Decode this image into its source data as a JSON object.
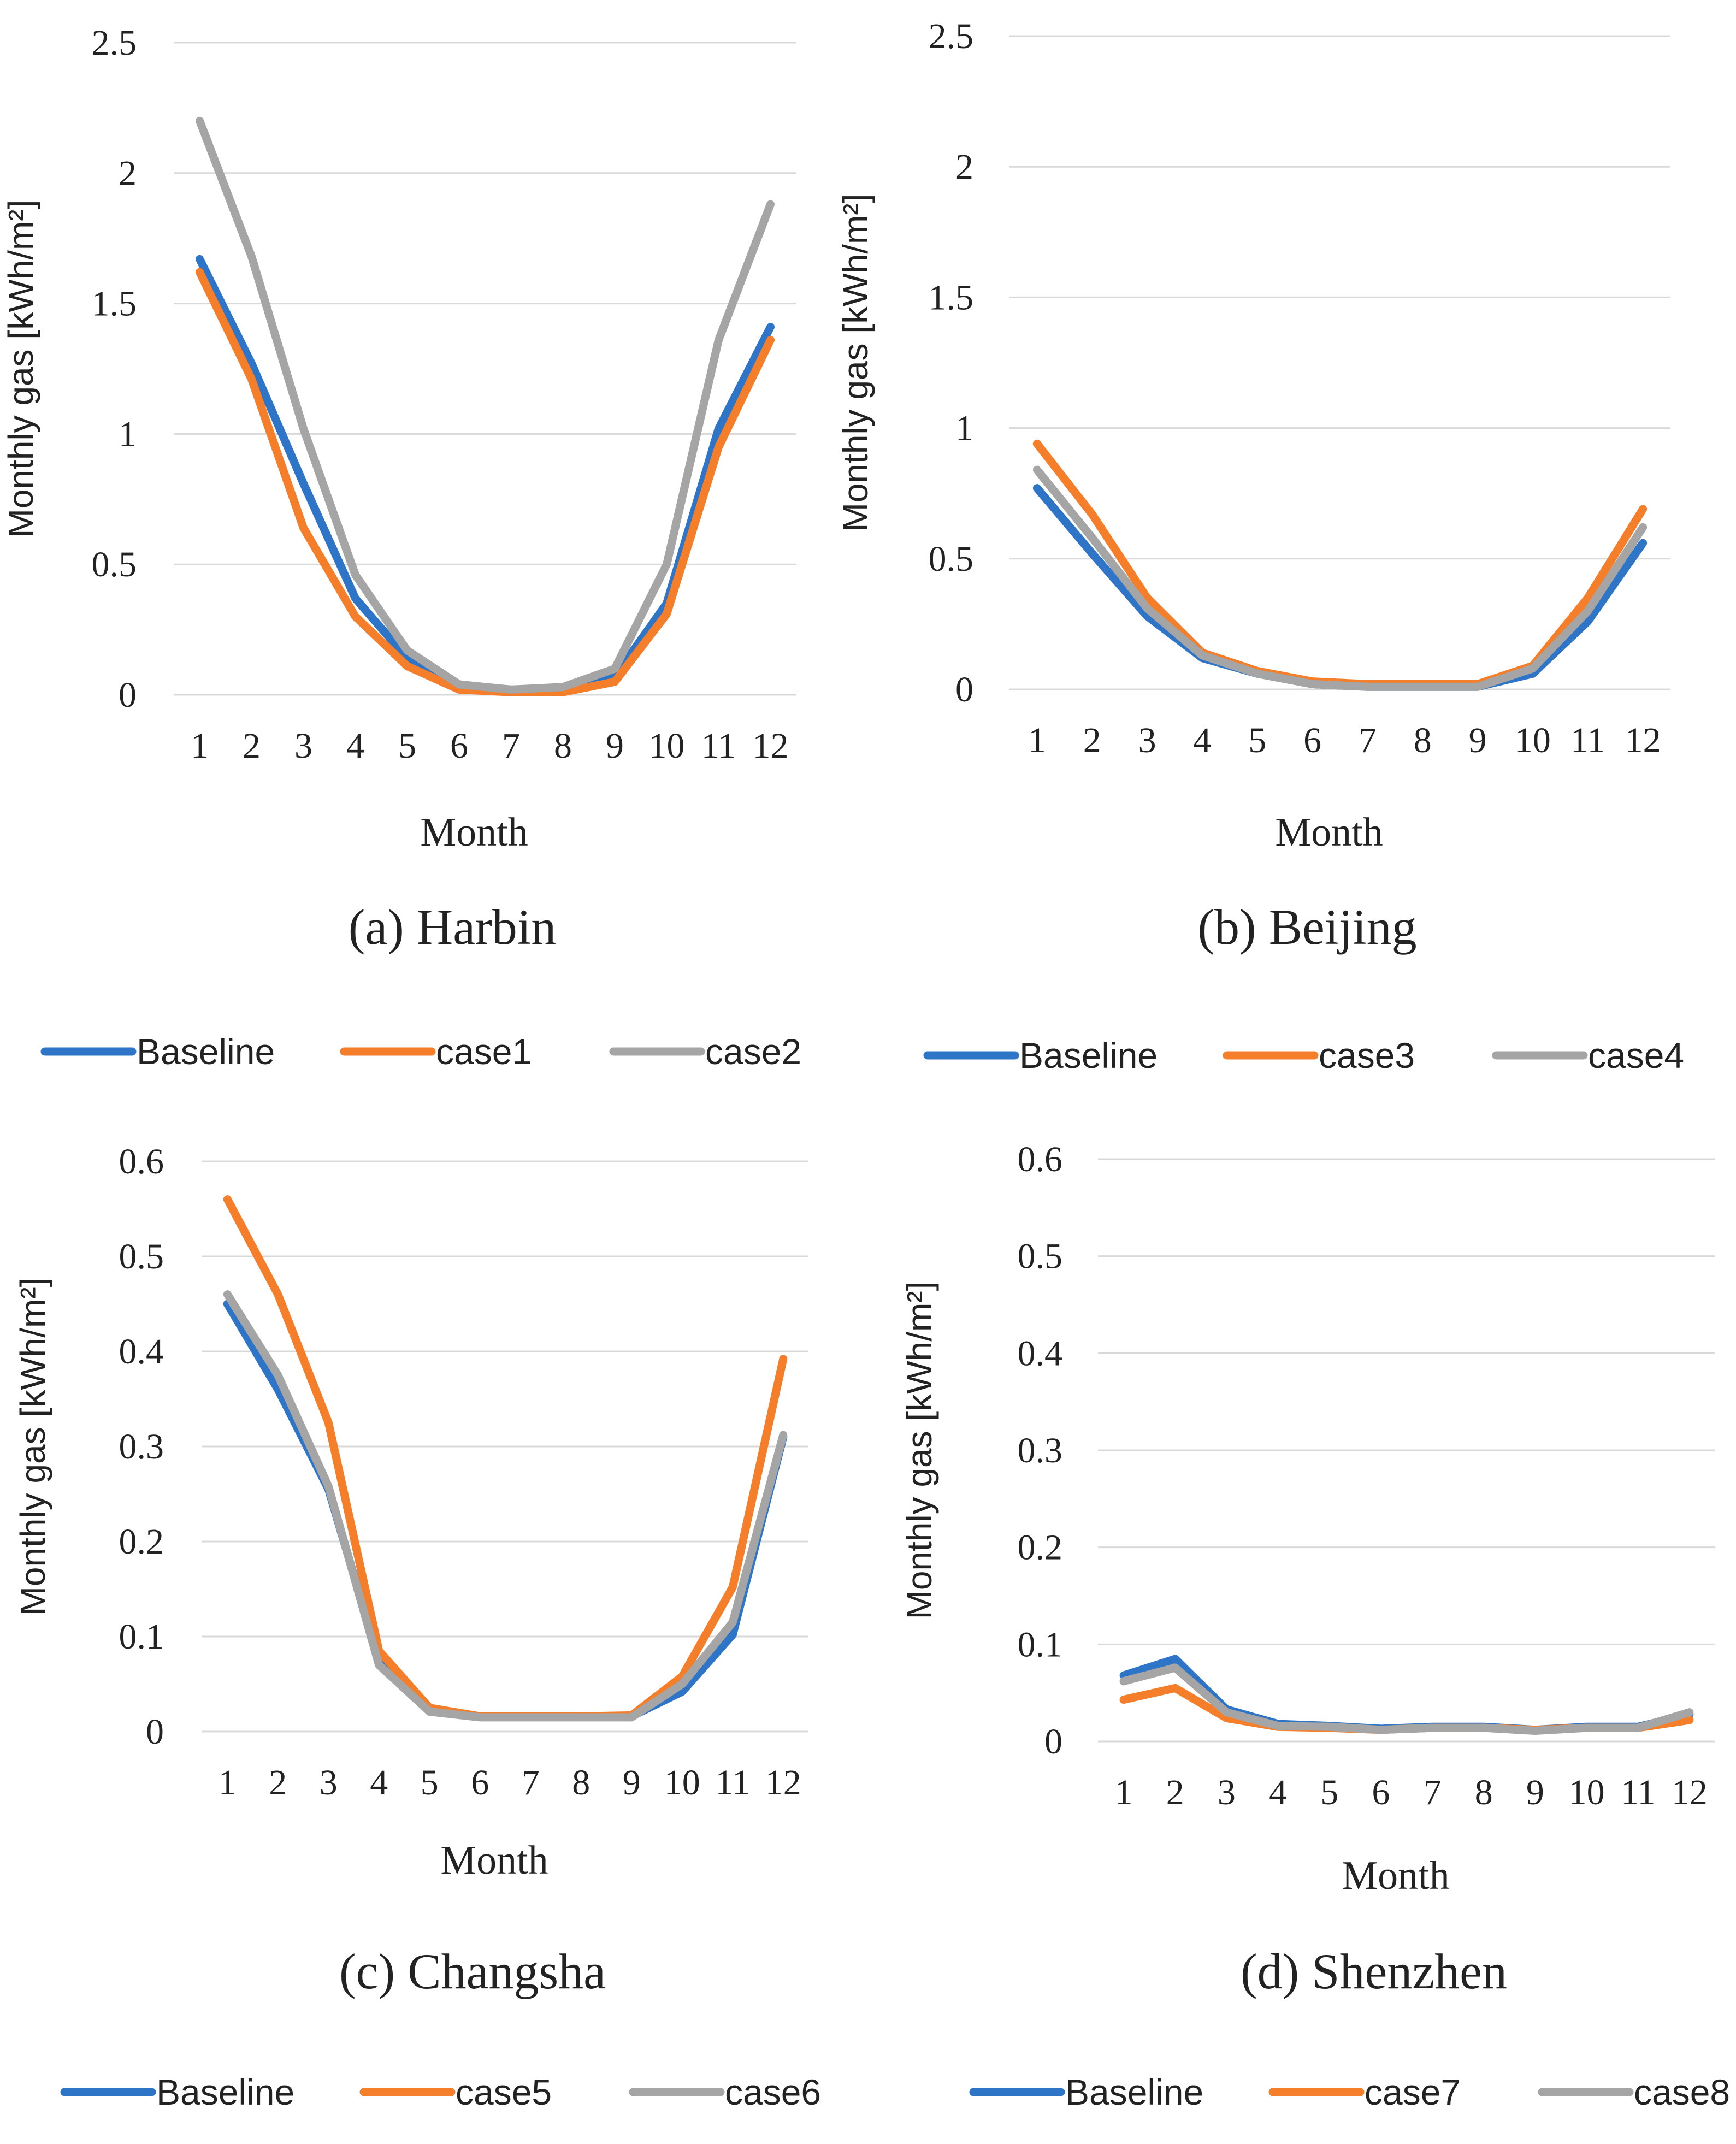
{
  "colors": {
    "baseline": "#2e75c8",
    "case_odd": "#f47e2a",
    "case_even": "#a5a5a5"
  },
  "chart_data": [
    {
      "type": "line",
      "caption": "(a) Harbin",
      "xlabel": "Month",
      "ylabel": "Monthly gas [kWh/m²]",
      "categories": [
        "1",
        "2",
        "3",
        "4",
        "5",
        "6",
        "7",
        "8",
        "9",
        "10",
        "11",
        "12"
      ],
      "ylim": [
        0,
        2.5
      ],
      "yticks": [
        "0",
        "0.5",
        "1",
        "1.5",
        "2",
        "2.5"
      ],
      "grid": true,
      "legend_position": "bottom",
      "series": [
        {
          "name": "Baseline",
          "values": [
            1.67,
            1.27,
            0.81,
            0.37,
            0.14,
            0.03,
            0.02,
            0.02,
            0.07,
            0.35,
            1.02,
            1.41
          ]
        },
        {
          "name": "case1",
          "values": [
            1.62,
            1.21,
            0.64,
            0.3,
            0.11,
            0.02,
            0.01,
            0.01,
            0.05,
            0.31,
            0.95,
            1.36
          ]
        },
        {
          "name": "case2",
          "values": [
            2.2,
            1.68,
            1.02,
            0.46,
            0.17,
            0.04,
            0.02,
            0.03,
            0.1,
            0.5,
            1.36,
            1.88
          ]
        }
      ]
    },
    {
      "type": "line",
      "caption": "(b) Beijing",
      "xlabel": "Month",
      "ylabel": "Monthly gas [kWh/m²]",
      "categories": [
        "1",
        "2",
        "3",
        "4",
        "5",
        "6",
        "7",
        "8",
        "9",
        "10",
        "11",
        "12"
      ],
      "ylim": [
        0,
        2.5
      ],
      "yticks": [
        "0",
        "0.5",
        "1",
        "1.5",
        "2",
        "2.5"
      ],
      "grid": true,
      "legend_position": "bottom",
      "series": [
        {
          "name": "Baseline",
          "values": [
            0.77,
            0.52,
            0.28,
            0.12,
            0.06,
            0.02,
            0.01,
            0.01,
            0.01,
            0.06,
            0.26,
            0.56
          ]
        },
        {
          "name": "case3",
          "values": [
            0.94,
            0.67,
            0.35,
            0.14,
            0.07,
            0.03,
            0.02,
            0.02,
            0.02,
            0.09,
            0.35,
            0.69
          ]
        },
        {
          "name": "case4",
          "values": [
            0.84,
            0.58,
            0.31,
            0.13,
            0.06,
            0.02,
            0.01,
            0.01,
            0.01,
            0.08,
            0.3,
            0.62
          ]
        }
      ]
    },
    {
      "type": "line",
      "caption": "(c) Changsha",
      "xlabel": "Month",
      "ylabel": "Monthly gas [kWh/m²]",
      "categories": [
        "1",
        "2",
        "3",
        "4",
        "5",
        "6",
        "7",
        "8",
        "9",
        "10",
        "11",
        "12"
      ],
      "ylim": [
        0,
        0.6
      ],
      "yticks": [
        "0",
        "0.1",
        "0.2",
        "0.3",
        "0.4",
        "0.5",
        "0.6"
      ],
      "grid": true,
      "legend_position": "bottom",
      "series": [
        {
          "name": "Baseline",
          "values": [
            0.45,
            0.36,
            0.255,
            0.075,
            0.022,
            0.016,
            0.016,
            0.016,
            0.016,
            0.042,
            0.102,
            0.31
          ]
        },
        {
          "name": "case5",
          "values": [
            0.56,
            0.46,
            0.325,
            0.085,
            0.025,
            0.016,
            0.016,
            0.016,
            0.017,
            0.058,
            0.152,
            0.392
          ]
        },
        {
          "name": "case6",
          "values": [
            0.46,
            0.375,
            0.258,
            0.07,
            0.021,
            0.015,
            0.015,
            0.015,
            0.015,
            0.05,
            0.115,
            0.312
          ]
        }
      ]
    },
    {
      "type": "line",
      "caption": "(d) Shenzhen",
      "xlabel": "Month",
      "ylabel": "Monthly gas [kWh/m²]",
      "categories": [
        "1",
        "2",
        "3",
        "4",
        "5",
        "6",
        "7",
        "8",
        "9",
        "10",
        "11",
        "12"
      ],
      "ylim": [
        0,
        0.6
      ],
      "yticks": [
        "0",
        "0.1",
        "0.2",
        "0.3",
        "0.4",
        "0.5",
        "0.6"
      ],
      "grid": true,
      "legend_position": "bottom",
      "series": [
        {
          "name": "Baseline",
          "values": [
            0.068,
            0.085,
            0.033,
            0.018,
            0.016,
            0.013,
            0.015,
            0.015,
            0.012,
            0.015,
            0.015,
            0.028
          ]
        },
        {
          "name": "case7",
          "values": [
            0.043,
            0.055,
            0.024,
            0.015,
            0.014,
            0.012,
            0.014,
            0.014,
            0.012,
            0.014,
            0.014,
            0.022
          ]
        },
        {
          "name": "case8",
          "values": [
            0.062,
            0.076,
            0.03,
            0.016,
            0.015,
            0.012,
            0.014,
            0.014,
            0.011,
            0.014,
            0.014,
            0.03
          ]
        }
      ]
    }
  ]
}
